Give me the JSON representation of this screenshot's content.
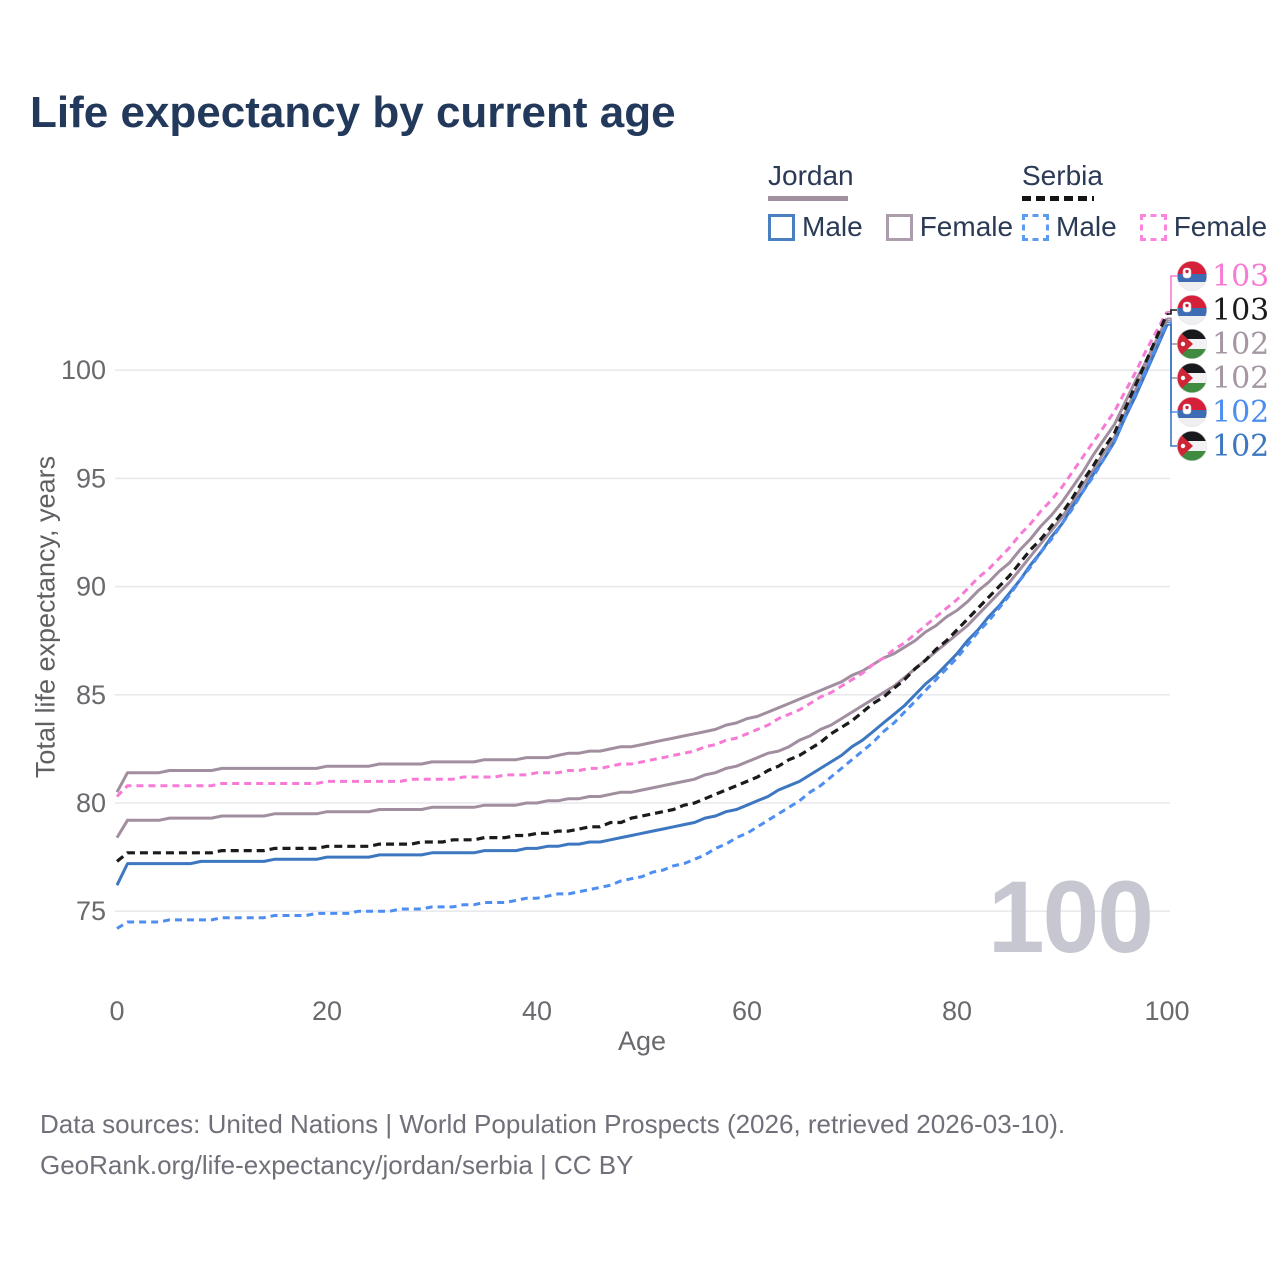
{
  "title": "Life expectancy by current age",
  "watermark": "100",
  "footer": {
    "line1": "Data sources: United Nations | World Population Prospects (2026, retrieved 2026-03-10).",
    "line2": "GeoRank.org/life-expectancy/jordan/serbia | CC BY"
  },
  "legend": {
    "groups": [
      {
        "name": "Jordan",
        "style": "solid",
        "underline_color": "#a18f9f",
        "items": [
          {
            "label": "Male",
            "color": "#4a7fc1",
            "dashed": false
          },
          {
            "label": "Female",
            "color": "#ab9dab",
            "dashed": false
          }
        ]
      },
      {
        "name": "Serbia",
        "style": "dashed",
        "underline_color": "#141414",
        "items": [
          {
            "label": "Male",
            "color": "#5b9bf0",
            "dashed": true
          },
          {
            "label": "Female",
            "color": "#fb85dc",
            "dashed": true
          }
        ]
      }
    ]
  },
  "chart_data": {
    "type": "line",
    "title": "Life expectancy by current age",
    "xlabel": "Age",
    "ylabel": "Total life expectancy, years",
    "x_ticks": [
      0,
      20,
      40,
      60,
      80,
      100
    ],
    "y_ticks": [
      75,
      80,
      85,
      90,
      95,
      100
    ],
    "xlim": [
      0,
      100
    ],
    "ylim": [
      73,
      103.5
    ],
    "grid": "horizontal",
    "legend_position": "top-right",
    "series": [
      {
        "key": "jordan-female",
        "name": "Jordan Female",
        "country": "Jordan",
        "sex": "Female",
        "color": "#a18f9f",
        "dashed": false,
        "flag": "jordan",
        "row": 2,
        "end_label": "102",
        "end_label_color": "#a596a3",
        "points": [
          [
            0,
            80.5
          ],
          [
            1,
            81.35
          ],
          [
            5,
            81.45
          ],
          [
            10,
            81.55
          ],
          [
            15,
            81.6
          ],
          [
            20,
            81.65
          ],
          [
            25,
            81.75
          ],
          [
            30,
            81.85
          ],
          [
            35,
            81.95
          ],
          [
            40,
            82.1
          ],
          [
            45,
            82.35
          ],
          [
            50,
            82.7
          ],
          [
            55,
            83.15
          ],
          [
            60,
            83.85
          ],
          [
            65,
            84.75
          ],
          [
            70,
            85.85
          ],
          [
            75,
            87.2
          ],
          [
            80,
            88.9
          ],
          [
            85,
            91.1
          ],
          [
            90,
            93.9
          ],
          [
            95,
            97.5
          ],
          [
            100,
            102.4
          ]
        ]
      },
      {
        "key": "jordan-both",
        "name": "Jordan (both sexes)",
        "country": "Jordan",
        "sex": "Both",
        "color": "#a18f9f",
        "dashed": false,
        "flag": "jordan",
        "row": 3,
        "end_label": "102",
        "end_label_color": "#a596a3",
        "points": [
          [
            0,
            78.4
          ],
          [
            1,
            79.15
          ],
          [
            5,
            79.25
          ],
          [
            10,
            79.35
          ],
          [
            15,
            79.45
          ],
          [
            20,
            79.55
          ],
          [
            25,
            79.65
          ],
          [
            30,
            79.75
          ],
          [
            35,
            79.85
          ],
          [
            40,
            80.0
          ],
          [
            45,
            80.25
          ],
          [
            50,
            80.6
          ],
          [
            55,
            81.1
          ],
          [
            60,
            81.85
          ],
          [
            65,
            82.85
          ],
          [
            70,
            84.15
          ],
          [
            75,
            85.75
          ],
          [
            80,
            87.75
          ],
          [
            85,
            90.2
          ],
          [
            90,
            93.2
          ],
          [
            95,
            96.9
          ],
          [
            100,
            102.3
          ]
        ]
      },
      {
        "key": "jordan-male",
        "name": "Jordan Male",
        "country": "Jordan",
        "sex": "Male",
        "color": "#3d77c0",
        "dashed": false,
        "flag": "jordan",
        "row": 5,
        "end_label": "102",
        "end_label_color": "#3d77c0",
        "points": [
          [
            0,
            76.2
          ],
          [
            1,
            77.15
          ],
          [
            5,
            77.2
          ],
          [
            10,
            77.3
          ],
          [
            15,
            77.35
          ],
          [
            20,
            77.45
          ],
          [
            25,
            77.55
          ],
          [
            30,
            77.65
          ],
          [
            35,
            77.75
          ],
          [
            40,
            77.9
          ],
          [
            45,
            78.15
          ],
          [
            50,
            78.55
          ],
          [
            55,
            79.1
          ],
          [
            60,
            79.9
          ],
          [
            65,
            81.0
          ],
          [
            70,
            82.55
          ],
          [
            75,
            84.5
          ],
          [
            80,
            86.9
          ],
          [
            85,
            89.7
          ],
          [
            90,
            92.9
          ],
          [
            95,
            96.7
          ],
          [
            100,
            102.05
          ]
        ]
      },
      {
        "key": "serbia-female",
        "name": "Serbia Female",
        "country": "Serbia",
        "sex": "Female",
        "color": "#f77bd5",
        "dashed": true,
        "dash": "7 5",
        "flag": "serbia",
        "row": 0,
        "end_label": "103",
        "end_label_color": "#f77bd5",
        "points": [
          [
            0,
            80.3
          ],
          [
            1,
            80.75
          ],
          [
            5,
            80.8
          ],
          [
            10,
            80.85
          ],
          [
            15,
            80.9
          ],
          [
            20,
            80.95
          ],
          [
            25,
            81.0
          ],
          [
            30,
            81.1
          ],
          [
            35,
            81.2
          ],
          [
            40,
            81.35
          ],
          [
            45,
            81.55
          ],
          [
            50,
            81.9
          ],
          [
            55,
            82.4
          ],
          [
            60,
            83.2
          ],
          [
            65,
            84.3
          ],
          [
            70,
            85.7
          ],
          [
            75,
            87.4
          ],
          [
            80,
            89.4
          ],
          [
            85,
            91.8
          ],
          [
            90,
            94.6
          ],
          [
            95,
            98.1
          ],
          [
            100,
            102.7
          ]
        ]
      },
      {
        "key": "serbia-both",
        "name": "Serbia (both sexes)",
        "country": "Serbia",
        "sex": "Both",
        "color": "#1b1b1b",
        "dashed": true,
        "dash": "8 5",
        "flag": "serbia",
        "row": 1,
        "end_label": "103",
        "end_label_color": "#1b1b1b",
        "points": [
          [
            0,
            77.3
          ],
          [
            1,
            77.65
          ],
          [
            5,
            77.7
          ],
          [
            10,
            77.75
          ],
          [
            15,
            77.85
          ],
          [
            20,
            77.95
          ],
          [
            25,
            78.05
          ],
          [
            30,
            78.2
          ],
          [
            35,
            78.35
          ],
          [
            40,
            78.55
          ],
          [
            45,
            78.85
          ],
          [
            50,
            79.35
          ],
          [
            55,
            80.0
          ],
          [
            60,
            80.95
          ],
          [
            65,
            82.2
          ],
          [
            70,
            83.8
          ],
          [
            75,
            85.7
          ],
          [
            80,
            87.95
          ],
          [
            85,
            90.5
          ],
          [
            90,
            93.4
          ],
          [
            95,
            97.1
          ],
          [
            100,
            102.55
          ]
        ]
      },
      {
        "key": "serbia-male",
        "name": "Serbia Male",
        "country": "Serbia",
        "sex": "Male",
        "color": "#4d8ef0",
        "dashed": true,
        "dash": "7 5",
        "flag": "serbia",
        "row": 4,
        "end_label": "102",
        "end_label_color": "#4d8ef0",
        "points": [
          [
            0,
            74.2
          ],
          [
            1,
            74.45
          ],
          [
            5,
            74.55
          ],
          [
            10,
            74.65
          ],
          [
            15,
            74.75
          ],
          [
            20,
            74.9
          ],
          [
            25,
            75.0
          ],
          [
            30,
            75.15
          ],
          [
            35,
            75.35
          ],
          [
            40,
            75.6
          ],
          [
            45,
            76.0
          ],
          [
            50,
            76.6
          ],
          [
            55,
            77.4
          ],
          [
            60,
            78.6
          ],
          [
            65,
            80.1
          ],
          [
            70,
            81.95
          ],
          [
            75,
            84.15
          ],
          [
            80,
            86.7
          ],
          [
            85,
            89.6
          ],
          [
            90,
            92.85
          ],
          [
            95,
            96.65
          ],
          [
            100,
            102.15
          ]
        ]
      }
    ]
  }
}
